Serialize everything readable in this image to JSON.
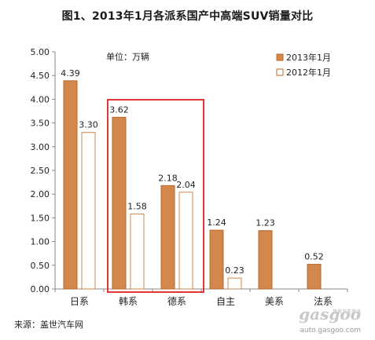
{
  "chart_data": {
    "type": "bar",
    "title": "图1、2013年1月各派系国产中高端SUV销量对比",
    "unit_label": "单位：万辆",
    "categories": [
      "日系",
      "韩系",
      "德系",
      "自主",
      "美系",
      "法系"
    ],
    "series": [
      {
        "name": "2013年1月",
        "values": [
          4.39,
          3.62,
          2.18,
          1.24,
          1.23,
          0.52
        ],
        "labels": [
          "4.39",
          "3.62",
          "2.18",
          "1.24",
          "1.23",
          "0.52"
        ],
        "color": "#d4874a"
      },
      {
        "name": "2012年1月",
        "values": [
          3.3,
          1.58,
          2.04,
          0.23,
          null,
          null
        ],
        "labels": [
          "3.30",
          "1.58",
          "2.04",
          "0.23",
          "",
          ""
        ],
        "color": "#ffffff"
      }
    ],
    "yticks": [
      "0.00",
      "0.50",
      "1.00",
      "1.50",
      "2.00",
      "2.50",
      "3.00",
      "3.50",
      "4.00",
      "4.50",
      "5.00"
    ],
    "ylim": [
      0,
      5
    ],
    "highlight": {
      "categories": [
        "韩系",
        "德系"
      ],
      "color": "#e02020"
    },
    "legend_position": "top-right",
    "grid": false
  },
  "source": "来源：盖世汽车网",
  "watermark": {
    "logo": "gasgoo",
    "tag": "盖世汽车资讯",
    "url": "auto.gasgoo.com"
  }
}
